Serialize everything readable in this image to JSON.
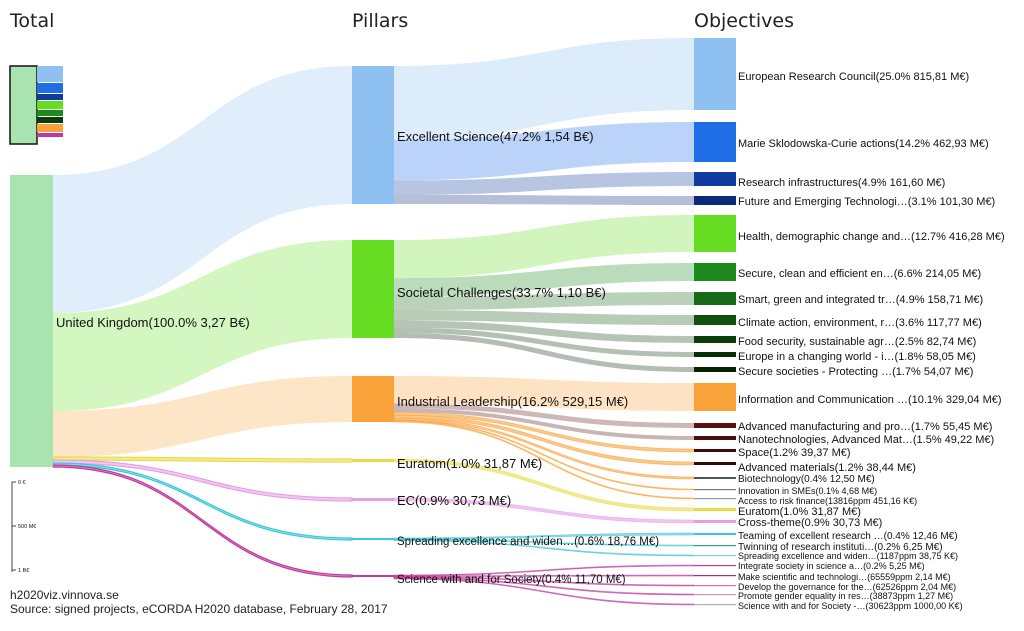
{
  "headers": {
    "total": "Total",
    "pillars": "Pillars",
    "objectives": "Objectives"
  },
  "source_node": {
    "label": "United Kingdom(100.0% 3,27 B€)",
    "color": "#a9e4b0"
  },
  "pillars": [
    {
      "id": "es",
      "label": "Excellent Science(47.2% 1,54 B€)",
      "color": "#8ec0f2"
    },
    {
      "id": "sc",
      "label": "Societal Challenges(33.7% 1,10 B€)",
      "color": "#66dd22"
    },
    {
      "id": "il",
      "label": "Industrial Leadership(16.2% 529,15 M€)",
      "color": "#f9a23a"
    },
    {
      "id": "eu",
      "label": "Euratom(1.0% 31,87 M€)",
      "color": "#e8dc46"
    },
    {
      "id": "ec",
      "label": "EC(0.9% 30,73 M€)",
      "color": "#e69ee6"
    },
    {
      "id": "sew",
      "label": "Spreading excellence and widen…(0.6% 18,76 M€)",
      "color": "#3cc8d6"
    },
    {
      "id": "swf",
      "label": "Science with and for Society(0.4% 11,70 M€)",
      "color": "#c03a9c"
    }
  ],
  "objectives": [
    {
      "pillar": "es",
      "label": "European Research Council(25.0% 815,81 M€)",
      "color": "#8ec0f2"
    },
    {
      "pillar": "es",
      "label": "Marie Sklodowska-Curie actions(14.2% 462,93 M€)",
      "color": "#1f6ee8"
    },
    {
      "pillar": "es",
      "label": "Research infrastructures(4.9% 161,60 M€)",
      "color": "#0f3a9e"
    },
    {
      "pillar": "es",
      "label": "Future and Emerging Technologi…(3.1% 101,30 M€)",
      "color": "#0a2b7a"
    },
    {
      "pillar": "sc",
      "label": "Health, demographic change and…(12.7% 416,28 M€)",
      "color": "#66dd22"
    },
    {
      "pillar": "sc",
      "label": "Secure, clean and efficient en…(6.6% 214,05 M€)",
      "color": "#1c8a1c"
    },
    {
      "pillar": "sc",
      "label": "Smart, green and integrated tr…(4.9% 158,71 M€)",
      "color": "#176a17"
    },
    {
      "pillar": "sc",
      "label": "Climate action, environment, r…(3.6% 117,77 M€)",
      "color": "#0f520f"
    },
    {
      "pillar": "sc",
      "label": "Food security, sustainable agr…(2.5% 82,74 M€)",
      "color": "#0a3d0a"
    },
    {
      "pillar": "sc",
      "label": "Europe in a changing world - i…(1.8% 58,05 M€)",
      "color": "#072e07"
    },
    {
      "pillar": "sc",
      "label": "Secure societies - Protecting …(1.7% 54,07 M€)",
      "color": "#052205"
    },
    {
      "pillar": "il",
      "label": "Information and Communication …(10.1% 329,04 M€)",
      "color": "#f9a23a"
    },
    {
      "pillar": "il",
      "label": "Advanced manufacturing and pro…(1.7% 55,45 M€)",
      "color": "#5a1010"
    },
    {
      "pillar": "il",
      "label": "Nanotechnologies, Advanced Mat…(1.5% 49,22 M€)",
      "color": "#4a0d0d"
    },
    {
      "pillar": "il",
      "label": "Space(1.2% 39,37 M€)",
      "color": "#3d0b0b"
    },
    {
      "pillar": "il",
      "label": "Advanced materials(1.2% 38,44 M€)",
      "color": "#300808"
    },
    {
      "pillar": "il",
      "label": "Biotechnology(0.4% 12,50 M€)",
      "color": "#555555"
    },
    {
      "pillar": "il",
      "label": "Innovation in SMEs(0.1% 4,68 M€)",
      "color": "#777777"
    },
    {
      "pillar": "il",
      "label": "Access to risk finance(13816ppm 451,16 K€)",
      "color": "#999999"
    },
    {
      "pillar": "eu",
      "label": "Euratom(1.0% 31,87 M€)",
      "color": "#e8dc46"
    },
    {
      "pillar": "ec",
      "label": "Cross-theme(0.9% 30,73 M€)",
      "color": "#e69ee6"
    },
    {
      "pillar": "sew",
      "label": "Teaming of excellent research …(0.4% 12,46 M€)",
      "color": "#3cc8d6"
    },
    {
      "pillar": "sew",
      "label": "Twinning of research instituti…(0.2% 6,25 M€)",
      "color": "#2aa0ac"
    },
    {
      "pillar": "sew",
      "label": "Spreading excellence and widen…(1187ppm 38,75 K€)",
      "color": "#7ad6e0"
    },
    {
      "pillar": "swf",
      "label": "Integrate society in science a…(0.2% 5,25 M€)",
      "color": "#c03a9c"
    },
    {
      "pillar": "swf",
      "label": "Make scientific and technologi…(65559ppm 2,14 M€)",
      "color": "#a03080"
    },
    {
      "pillar": "swf",
      "label": "Develop the governance for the…(62526ppm 2,04 M€)",
      "color": "#d070b8"
    },
    {
      "pillar": "swf",
      "label": "Promote gender equality in res…(38873ppm 1,27 M€)",
      "color": "#e08ccc"
    },
    {
      "pillar": "swf",
      "label": "Science with and for Society -…(30623ppm 1000,00 K€)",
      "color": "#b0b0b0"
    }
  ],
  "mini_bar_colors": [
    "#8ec0f2",
    "#1f6ee8",
    "#0f3a9e",
    "#66dd22",
    "#1c8a1c",
    "#0a3d0a",
    "#f9a23a",
    "#c03a9c"
  ],
  "scale": {
    "ticks": [
      "0 €",
      "500 M€",
      "1 B€"
    ]
  },
  "footer": {
    "site": "h2020viz.vinnova.se",
    "source": "Source: signed projects, eCORDA H2020 database, February 28, 2017"
  }
}
